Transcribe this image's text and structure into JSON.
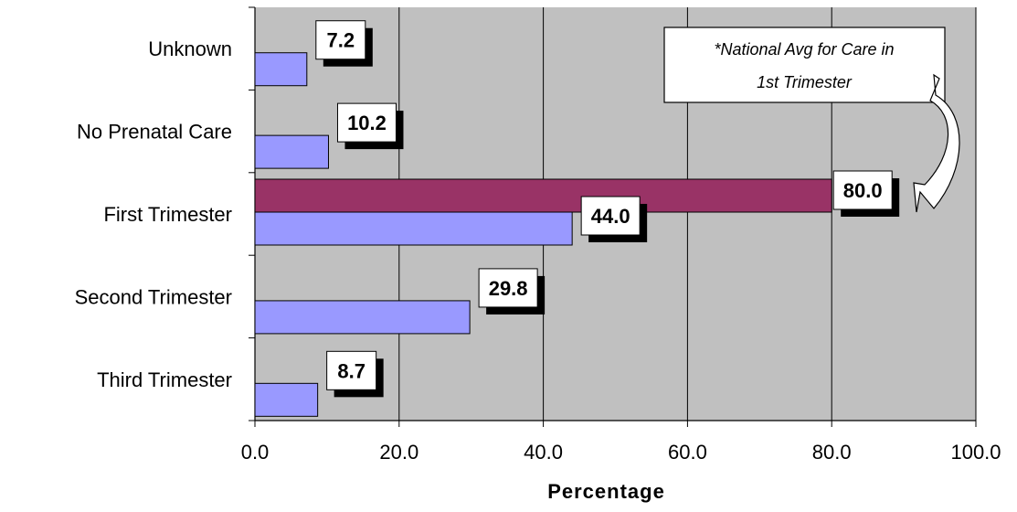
{
  "chart_data": {
    "type": "bar",
    "orientation": "horizontal",
    "categories": [
      "Unknown",
      "No Prenatal Care",
      "First Trimester",
      "Second Trimester",
      "Third Trimester"
    ],
    "series": [
      {
        "values": [
          7.2,
          10.2,
          44.0,
          29.8,
          8.7
        ],
        "color": "#9999ff"
      },
      {
        "values": [
          null,
          null,
          80.0,
          null,
          null
        ],
        "color": "#993366"
      }
    ],
    "data_labels": {
      "primary": [
        "7.2",
        "10.2",
        "44.0",
        "29.8",
        "8.7"
      ],
      "national": "80.0"
    },
    "xlabel": "Percentage",
    "xlim": [
      0,
      100
    ],
    "x_ticks": [
      "0.0",
      "20.0",
      "40.0",
      "60.0",
      "80.0",
      "100.0"
    ],
    "grid": "vertical",
    "plot_background": "#c0c0c0",
    "annotation": {
      "line1": "*National Avg for Care in",
      "line2": "1st Trimester"
    }
  }
}
